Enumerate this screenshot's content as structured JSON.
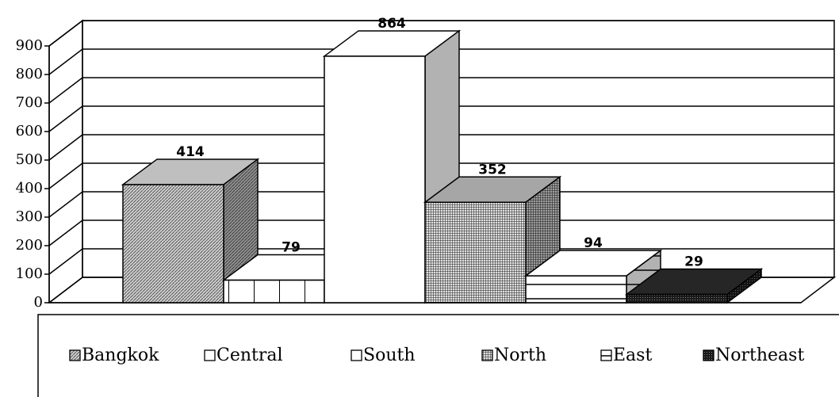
{
  "chart_data": {
    "type": "bar3d",
    "series": [
      {
        "name": "Bangkok",
        "color": "#bfbfbf",
        "pattern": "diagonal",
        "values": [
          414
        ]
      },
      {
        "name": "Central",
        "color": "#ffffff",
        "pattern": "vertical",
        "values": [
          79
        ]
      },
      {
        "name": "South",
        "color": "#ffffff",
        "pattern": "none",
        "values": [
          864
        ]
      },
      {
        "name": "North",
        "color": "#a6a6a6",
        "pattern": "grid",
        "values": [
          352
        ]
      },
      {
        "name": "East",
        "color": "#ffffff",
        "pattern": "horizontal",
        "values": [
          94
        ]
      },
      {
        "name": "Northeast",
        "color": "#262626",
        "pattern": "dots",
        "values": [
          29
        ]
      }
    ],
    "ylim": [
      0,
      900
    ],
    "yticks": [
      0,
      100,
      200,
      300,
      400,
      500,
      600,
      700,
      800,
      900
    ],
    "grid": true,
    "legend": "bottom"
  }
}
